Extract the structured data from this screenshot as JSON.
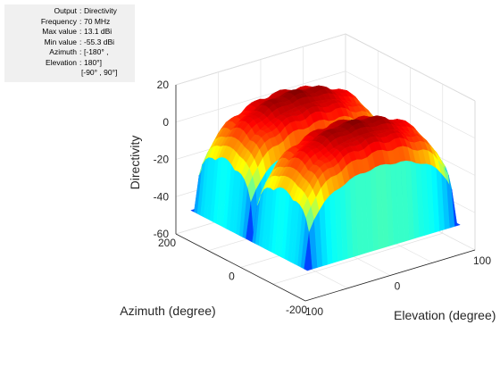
{
  "info": {
    "rows": [
      {
        "key": "Output",
        "value": "Directivity"
      },
      {
        "key": "Frequency",
        "value": "70 MHz"
      },
      {
        "key": "Max value",
        "value": "13.1 dBi"
      },
      {
        "key": "Min value",
        "value": "-55.3 dBi"
      },
      {
        "key": "Azimuth",
        "value": "[-180° ,"
      },
      {
        "key": "Elevation",
        "value": "180°]"
      },
      {
        "key": "",
        "value": "[-90° , 90°]"
      }
    ]
  },
  "chart_data": {
    "type": "surface",
    "title": "",
    "xlabel": "Elevation (degree)",
    "ylabel": "Azimuth (degree)",
    "zlabel": "Directivity",
    "xlim": [
      -100,
      100
    ],
    "ylim": [
      -200,
      200
    ],
    "zlim": [
      -60,
      20
    ],
    "xticks": [
      "-100",
      "0",
      "100"
    ],
    "yticks": [
      "-200",
      "0",
      "200"
    ],
    "zticks": [
      "-60",
      "-40",
      "-20",
      "0",
      "20"
    ],
    "azimuth_range": [
      -180,
      180
    ],
    "elevation_range": [
      -90,
      90
    ],
    "z_max": 13.1,
    "z_min": -55.3,
    "colormap": "jet",
    "grid": true,
    "lobe_peaks": [
      {
        "azimuth": -90,
        "elevation": 0,
        "value": 13.1
      },
      {
        "azimuth": 90,
        "elevation": 0,
        "value": 13.1
      }
    ]
  }
}
